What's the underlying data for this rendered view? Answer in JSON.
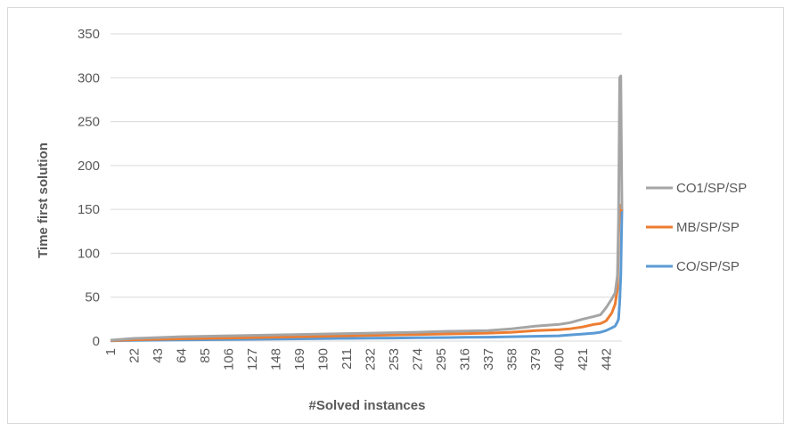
{
  "chart_data": {
    "type": "line",
    "title": "",
    "xlabel": "#Solved instances",
    "ylabel": "Time first solution",
    "ylim": [
      0,
      350
    ],
    "yticks": [
      0,
      50,
      100,
      150,
      200,
      250,
      300,
      350
    ],
    "xlim": [
      1,
      456
    ],
    "xticks": [
      1,
      22,
      43,
      64,
      85,
      106,
      127,
      148,
      169,
      190,
      211,
      232,
      253,
      274,
      295,
      316,
      337,
      358,
      379,
      400,
      421,
      442
    ],
    "grid": true,
    "legend": "right",
    "series": [
      {
        "name": "CO1/SP/SP",
        "color": "#a5a5a5",
        "x": [
          1,
          22,
          43,
          64,
          85,
          106,
          127,
          148,
          169,
          190,
          211,
          232,
          253,
          274,
          295,
          316,
          337,
          358,
          379,
          400,
          410,
          421,
          431,
          437,
          442,
          447,
          450,
          452,
          453,
          454,
          455,
          456
        ],
        "y": [
          1,
          3,
          4,
          5,
          5.5,
          6,
          6.5,
          7,
          7.5,
          8,
          8.5,
          9,
          9.5,
          10,
          11,
          11.5,
          12,
          14,
          17,
          19,
          21,
          25,
          28,
          30,
          38,
          48,
          55,
          75,
          140,
          300,
          302,
          150
        ]
      },
      {
        "name": "MB/SP/SP",
        "color": "#ed7d31",
        "x": [
          1,
          22,
          43,
          64,
          85,
          106,
          127,
          148,
          169,
          190,
          211,
          232,
          253,
          274,
          295,
          316,
          337,
          358,
          379,
          400,
          410,
          421,
          431,
          437,
          442,
          447,
          450,
          452,
          453,
          454,
          455,
          456
        ],
        "y": [
          0.5,
          1.5,
          2,
          2.5,
          3,
          3.5,
          4,
          4.5,
          5,
          5.5,
          6,
          6.5,
          7,
          7.5,
          8,
          8.5,
          9,
          10,
          12,
          13,
          14,
          16,
          19,
          20,
          23,
          32,
          42,
          60,
          120,
          155,
          150,
          148
        ]
      },
      {
        "name": "CO/SP/SP",
        "color": "#5b9bd5",
        "x": [
          1,
          22,
          43,
          64,
          85,
          106,
          127,
          148,
          169,
          190,
          211,
          232,
          253,
          274,
          295,
          316,
          337,
          358,
          379,
          400,
          410,
          421,
          431,
          437,
          442,
          447,
          450,
          452,
          453,
          454,
          455,
          456
        ],
        "y": [
          0.3,
          0.8,
          1,
          1.2,
          1.5,
          1.8,
          2,
          2.2,
          2.5,
          2.8,
          3,
          3.2,
          3.5,
          3.8,
          4,
          4.3,
          4.5,
          5,
          5.5,
          6,
          7,
          8,
          9,
          10,
          12,
          15,
          17,
          22,
          25,
          45,
          75,
          150
        ]
      }
    ]
  }
}
